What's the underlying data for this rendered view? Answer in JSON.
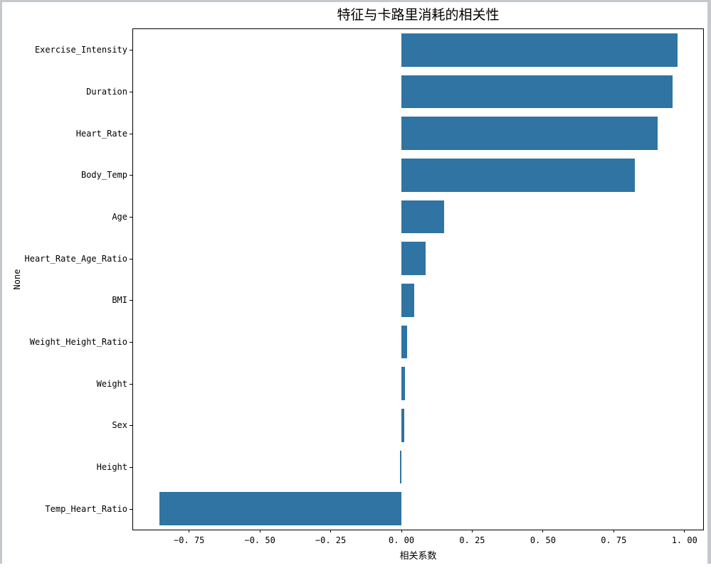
{
  "window": {
    "frame_color": "#c5c9cd"
  },
  "chart_data": {
    "type": "bar",
    "orientation": "horizontal",
    "title": "特征与卡路里消耗的相关性",
    "xlabel": "相关系数",
    "ylabel": "None",
    "categories": [
      "Exercise_Intensity",
      "Duration",
      "Heart_Rate",
      "Body_Temp",
      "Age",
      "Heart_Rate_Age_Ratio",
      "BMI",
      "Weight_Height_Ratio",
      "Weight",
      "Sex",
      "Height",
      "Temp_Heart_Ratio"
    ],
    "values": [
      0.975,
      0.957,
      0.905,
      0.825,
      0.15,
      0.085,
      0.044,
      0.02,
      0.013,
      0.009,
      -0.005,
      -0.856
    ],
    "xlim": [
      -0.948,
      1.066
    ],
    "x_ticks": [
      -0.75,
      -0.5,
      -0.25,
      0,
      0.25,
      0.5,
      0.75,
      1.0
    ],
    "x_tick_labels": [
      "−0. 75",
      "−0. 50",
      "−0. 25",
      "0. 00",
      "0. 25",
      "0. 50",
      "0. 75",
      "1. 00"
    ],
    "bar_color": "#2f74a2",
    "bar_width_fraction": 0.8,
    "grid": false,
    "legend": null,
    "plot_background": "#ffffff"
  }
}
